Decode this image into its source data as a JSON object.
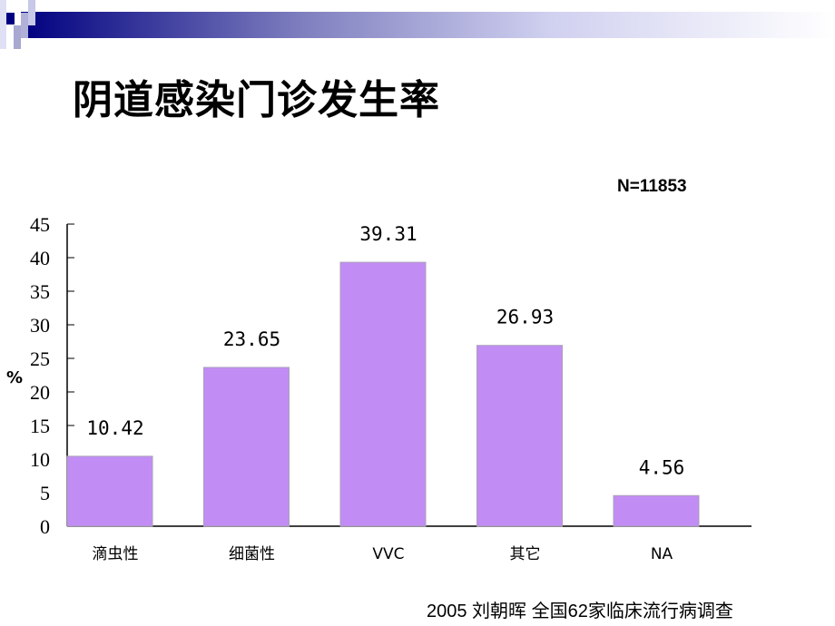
{
  "slide": {
    "title": "阴道感染门诊发生率",
    "sample_size": "N=11853",
    "source": "2005 刘朝晖 全国62家临床流行病调查",
    "banner_colors": [
      "#000080",
      "#ffffff"
    ]
  },
  "chart_data": {
    "type": "bar",
    "categories": [
      "滴虫性",
      "细菌性",
      "VVC",
      "其它",
      "NA"
    ],
    "values": [
      10.42,
      23.65,
      39.31,
      26.93,
      4.56
    ],
    "data_labels": [
      "10.42",
      "23.65",
      "39.31",
      "26.93",
      "4.56"
    ],
    "ylabel": "%",
    "ylim": [
      0,
      45
    ],
    "yticks": [
      0,
      5,
      10,
      15,
      20,
      25,
      30,
      35,
      40,
      45
    ],
    "grid": false,
    "legend": "none",
    "bar_color": "#c28cf5"
  }
}
